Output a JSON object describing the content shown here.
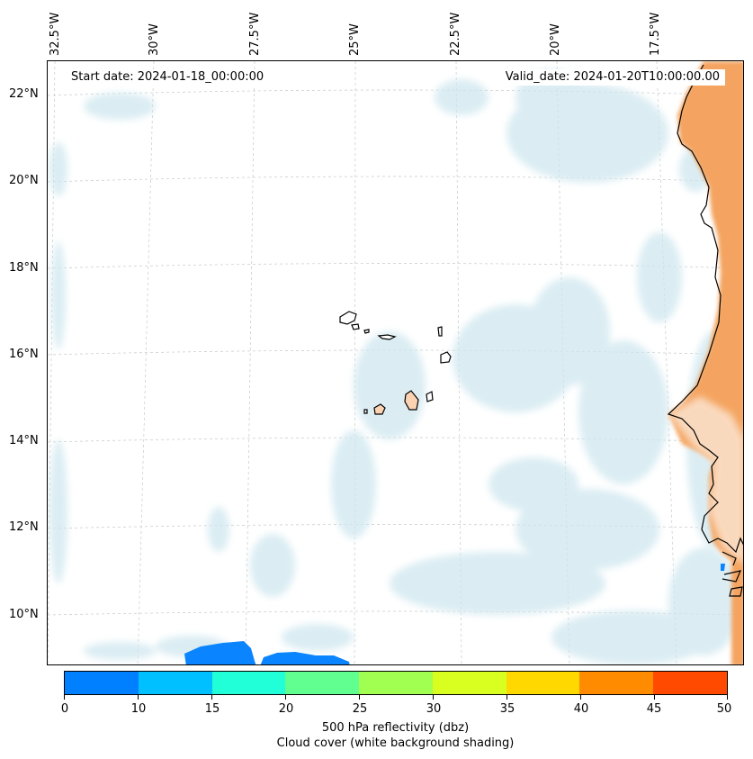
{
  "map": {
    "start_date": "Start date: 2024-01-18_00:00:00",
    "valid_date": "Valid_date: 2024-01-20T10:00:00.00",
    "longitude_labels": [
      "32.5°W",
      "30°W",
      "27.5°W",
      "25°W",
      "22.5°W",
      "20°W",
      "17.5°W"
    ],
    "latitude_labels": [
      "22°N",
      "20°N",
      "18°N",
      "16°N",
      "14°N",
      "12°N",
      "10°N"
    ],
    "land_color": "#f4a460",
    "cloud_color": "#cfe7ef",
    "reflectivity_color": "#0a84ff"
  },
  "colorbar": {
    "ticks": [
      "0",
      "10",
      "15",
      "20",
      "25",
      "30",
      "35",
      "40",
      "45",
      "50"
    ],
    "colors": [
      "#0080ff",
      "#00c0ff",
      "#20ffd8",
      "#60ff90",
      "#a0ff50",
      "#d8ff20",
      "#ffd800",
      "#ff8c00",
      "#ff4a00"
    ],
    "label_line1": "500 hPa reflectivity (dbz)",
    "label_line2": "Cloud cover (white background shading)"
  }
}
